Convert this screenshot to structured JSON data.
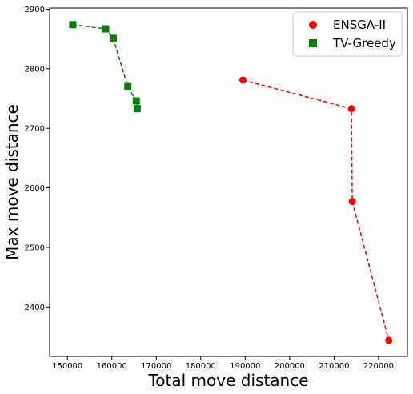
{
  "chart_data": {
    "type": "scatter",
    "title": "",
    "xlabel": "Total move distance",
    "ylabel": "Max move distance",
    "xlim": [
      146000,
      226500
    ],
    "ylim": [
      2317,
      2902
    ],
    "xticks": [
      150000,
      160000,
      170000,
      180000,
      190000,
      200000,
      210000,
      220000
    ],
    "yticks": [
      2400,
      2500,
      2600,
      2700,
      2800,
      2900
    ],
    "grid": false,
    "legend": "top-right",
    "series": [
      {
        "name": "ENSGA-II",
        "color": "#ff0000",
        "marker": "circle",
        "line": "dashed",
        "x": [
          189500,
          213900,
          214100,
          222300
        ],
        "y": [
          2781,
          2733,
          2577,
          2344
        ]
      },
      {
        "name": "TV-Greedy",
        "color": "#008000",
        "marker": "square",
        "line": "dashed",
        "x": [
          151200,
          158600,
          160300,
          163600,
          165500,
          165700
        ],
        "y": [
          2874,
          2867,
          2851,
          2770,
          2746,
          2733
        ]
      }
    ]
  }
}
